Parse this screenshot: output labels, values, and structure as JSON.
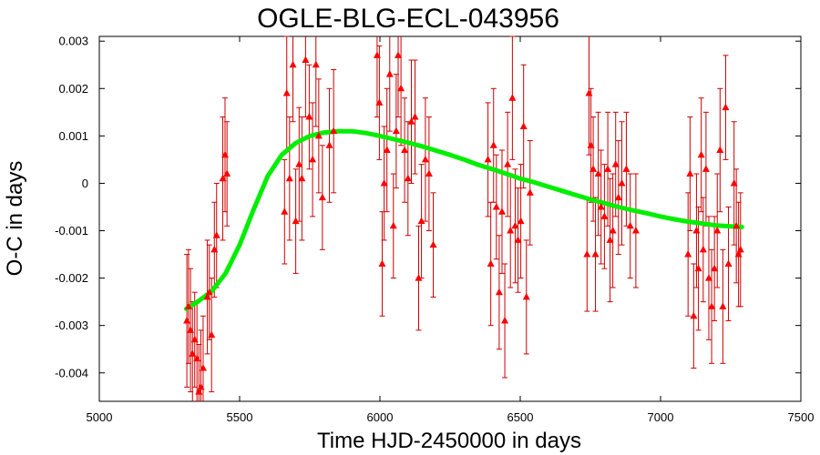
{
  "chart_data": {
    "type": "scatter",
    "title": "OGLE-BLG-ECL-043956",
    "xlabel": "Time HJD-2450000 in days",
    "ylabel": "O-C in days",
    "xlim": [
      5000,
      7500
    ],
    "ylim": [
      -0.0046,
      0.0031
    ],
    "xticks": [
      5000,
      5500,
      6000,
      6500,
      7000,
      7500
    ],
    "yticks": [
      -0.004,
      -0.003,
      -0.002,
      -0.001,
      0,
      0.001,
      0.002,
      0.003
    ],
    "ytick_labels": [
      "-0.004",
      "-0.003",
      "-0.002",
      "-0.001",
      "0",
      "0.001",
      "0.002",
      "0.003"
    ],
    "grid": false,
    "legend": "none",
    "series": [
      {
        "kind": "points-with-errorbars",
        "color": "#ff0000",
        "errorbar_color": "#cc0000",
        "marker": "triangle",
        "points": [
          [
            5312,
            -0.0029,
            0.0014
          ],
          [
            5318,
            -0.0026,
            0.0012
          ],
          [
            5325,
            -0.0031,
            0.0013
          ],
          [
            5332,
            -0.0036,
            0.0011
          ],
          [
            5340,
            -0.0033,
            0.001
          ],
          [
            5348,
            -0.0037,
            0.0012
          ],
          [
            5355,
            -0.0044,
            0.001
          ],
          [
            5362,
            -0.0043,
            0.0012
          ],
          [
            5370,
            -0.0039,
            0.0011
          ],
          [
            5385,
            -0.0024,
            0.0012
          ],
          [
            5392,
            -0.0023,
            0.001
          ],
          [
            5400,
            -0.0032,
            0.0012
          ],
          [
            5410,
            -0.0014,
            0.001
          ],
          [
            5418,
            -0.0011,
            0.0011
          ],
          [
            5440,
            0.0001,
            0.0013
          ],
          [
            5448,
            0.0006,
            0.0012
          ],
          [
            5455,
            0.0002,
            0.0011
          ],
          [
            5660,
            -0.0006,
            0.0011
          ],
          [
            5668,
            0.0019,
            0.0012
          ],
          [
            5678,
            0.0001,
            0.0013
          ],
          [
            5690,
            0.0025,
            0.0012
          ],
          [
            5700,
            -0.0008,
            0.0011
          ],
          [
            5712,
            0.0004,
            0.0012
          ],
          [
            5722,
            0.0001,
            0.0013
          ],
          [
            5735,
            0.0026,
            0.0012
          ],
          [
            5748,
            0.0014,
            0.0011
          ],
          [
            5760,
            0.0005,
            0.0012
          ],
          [
            5772,
            0.0025,
            0.0013
          ],
          [
            5782,
            0.001,
            0.0012
          ],
          [
            5795,
            -0.0003,
            0.0011
          ],
          [
            5820,
            0.0008,
            0.0012
          ],
          [
            5835,
            0.0011,
            0.0013
          ],
          [
            5990,
            0.0027,
            0.0013
          ],
          [
            5998,
            0.0017,
            0.0012
          ],
          [
            6008,
            -0.0017,
            0.0011
          ],
          [
            6015,
            0.0,
            0.0012
          ],
          [
            6025,
            0.0007,
            0.0013
          ],
          [
            6035,
            0.0023,
            0.0012
          ],
          [
            6048,
            -0.0009,
            0.0011
          ],
          [
            6058,
            0.0011,
            0.0012
          ],
          [
            6065,
            0.0027,
            0.0013
          ],
          [
            6075,
            0.002,
            0.0012
          ],
          [
            6088,
            0.0007,
            0.0011
          ],
          [
            6100,
            0.0001,
            0.0012
          ],
          [
            6112,
            0.0013,
            0.0013
          ],
          [
            6125,
            0.0014,
            0.0012
          ],
          [
            6138,
            -0.002,
            0.0011
          ],
          [
            6148,
            -0.0008,
            0.0012
          ],
          [
            6162,
            0.0005,
            0.0013
          ],
          [
            6175,
            0.0002,
            0.0012
          ],
          [
            6190,
            -0.0013,
            0.0011
          ],
          [
            6385,
            0.0005,
            0.0012
          ],
          [
            6395,
            -0.0017,
            0.0013
          ],
          [
            6405,
            0.0008,
            0.0012
          ],
          [
            6415,
            -0.0005,
            0.0011
          ],
          [
            6425,
            -0.0023,
            0.0012
          ],
          [
            6435,
            -0.0006,
            0.0013
          ],
          [
            6445,
            -0.0029,
            0.0012
          ],
          [
            6455,
            0.0004,
            0.0011
          ],
          [
            6465,
            -0.001,
            0.0012
          ],
          [
            6472,
            0.0018,
            0.0013
          ],
          [
            6482,
            -0.0009,
            0.0012
          ],
          [
            6492,
            -0.0012,
            0.0011
          ],
          [
            6502,
            -0.0008,
            0.0012
          ],
          [
            6512,
            0.0012,
            0.0013
          ],
          [
            6522,
            -0.0024,
            0.0012
          ],
          [
            6535,
            -0.0002,
            0.0011
          ],
          [
            6738,
            -0.0015,
            0.0012
          ],
          [
            6745,
            0.0019,
            0.0013
          ],
          [
            6752,
            0.0008,
            0.0012
          ],
          [
            6760,
            0.0003,
            0.0011
          ],
          [
            6768,
            -0.0015,
            0.0012
          ],
          [
            6778,
            0.0002,
            0.0013
          ],
          [
            6788,
            -0.0005,
            0.0012
          ],
          [
            6800,
            -0.0007,
            0.0011
          ],
          [
            6812,
            0.0003,
            0.0012
          ],
          [
            6820,
            -0.0012,
            0.0013
          ],
          [
            6830,
            -0.001,
            0.0012
          ],
          [
            6840,
            0.0004,
            0.0011
          ],
          [
            6850,
            -0.0003,
            0.0012
          ],
          [
            6862,
            0.0,
            0.0013
          ],
          [
            6878,
            0.0003,
            0.0012
          ],
          [
            6892,
            -0.0009,
            0.0011
          ],
          [
            6912,
            -0.001,
            0.0012
          ],
          [
            7098,
            -0.0015,
            0.0013
          ],
          [
            7105,
            0.0002,
            0.0012
          ],
          [
            7118,
            -0.0028,
            0.0011
          ],
          [
            7128,
            -0.001,
            0.0012
          ],
          [
            7135,
            -0.0018,
            0.0013
          ],
          [
            7145,
            0.0006,
            0.0012
          ],
          [
            7152,
            -0.0014,
            0.0011
          ],
          [
            7162,
            0.0003,
            0.0012
          ],
          [
            7172,
            -0.002,
            0.0013
          ],
          [
            7182,
            -0.0026,
            0.0012
          ],
          [
            7192,
            -0.0018,
            0.0011
          ],
          [
            7202,
            -0.001,
            0.0012
          ],
          [
            7212,
            0.0007,
            0.0013
          ],
          [
            7222,
            -0.0026,
            0.0012
          ],
          [
            7232,
            0.0016,
            0.0011
          ],
          [
            7242,
            -0.0017,
            0.0012
          ],
          [
            7262,
            0.0,
            0.0013
          ],
          [
            7270,
            -0.0009,
            0.0012
          ],
          [
            7278,
            -0.0015,
            0.0011
          ],
          [
            7285,
            -0.0014,
            0.0012
          ]
        ]
      },
      {
        "kind": "fit-curve",
        "color": "#00ee00",
        "points": [
          [
            5310,
            -0.00265
          ],
          [
            5350,
            -0.0025
          ],
          [
            5400,
            -0.00228
          ],
          [
            5450,
            -0.0019
          ],
          [
            5500,
            -0.0013
          ],
          [
            5550,
            -0.00055
          ],
          [
            5600,
            0.00015
          ],
          [
            5650,
            0.0006
          ],
          [
            5700,
            0.00085
          ],
          [
            5750,
            0.001
          ],
          [
            5800,
            0.00107
          ],
          [
            5850,
            0.0011
          ],
          [
            5900,
            0.0011
          ],
          [
            5950,
            0.00106
          ],
          [
            6000,
            0.001
          ],
          [
            6050,
            0.00093
          ],
          [
            6100,
            0.00086
          ],
          [
            6150,
            0.00078
          ],
          [
            6200,
            0.00069
          ],
          [
            6250,
            0.0006
          ],
          [
            6300,
            0.0005
          ],
          [
            6350,
            0.00039
          ],
          [
            6400,
            0.0003
          ],
          [
            6450,
            0.0002
          ],
          [
            6500,
            0.0001
          ],
          [
            6550,
            2e-05
          ],
          [
            6600,
            -7e-05
          ],
          [
            6650,
            -0.00016
          ],
          [
            6700,
            -0.00025
          ],
          [
            6750,
            -0.00034
          ],
          [
            6800,
            -0.00042
          ],
          [
            6850,
            -0.0005
          ],
          [
            6900,
            -0.00057
          ],
          [
            6950,
            -0.00063
          ],
          [
            7000,
            -0.0007
          ],
          [
            7050,
            -0.00076
          ],
          [
            7100,
            -0.00081
          ],
          [
            7150,
            -0.00085
          ],
          [
            7200,
            -0.00089
          ],
          [
            7250,
            -0.00091
          ],
          [
            7290,
            -0.00092
          ]
        ]
      }
    ]
  }
}
